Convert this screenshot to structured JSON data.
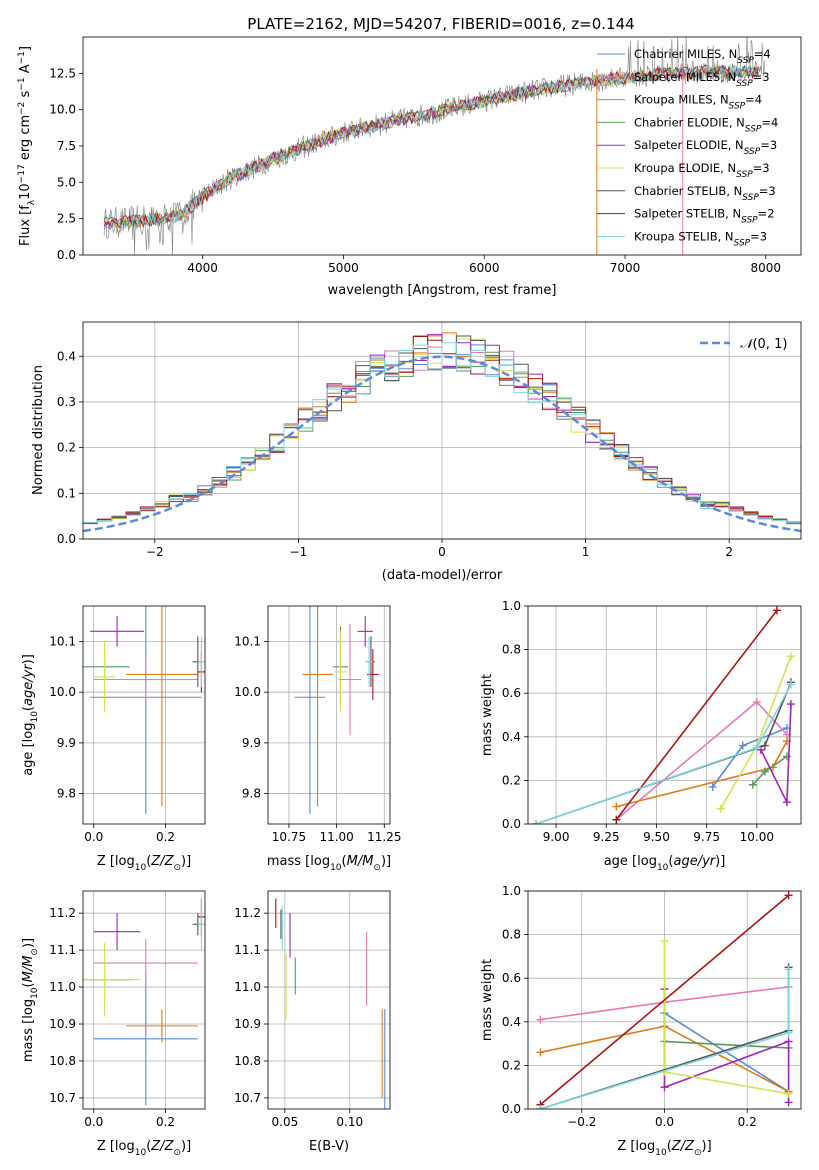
{
  "figure": {
    "title": "PLATE=2162, MJD=54207, FIBERID=0016, z=0.144"
  },
  "colors": {
    "Chabrier MILES": "#5b8ad6",
    "Salpeter MILES": "#e57ab8",
    "Kroupa MILES": "#de7a1f",
    "Chabrier ELODIE": "#5a9a58",
    "Salpeter ELODIE": "#9b28b5",
    "Kroupa ELODIE": "#cfe35a",
    "Chabrier STELIB": "#555555",
    "Salpeter STELIB": "#a51616",
    "Kroupa STELIB": "#7fd6e0",
    "data": "#808080",
    "gaussian": "#5b8ad6"
  },
  "chart_data": [
    {
      "id": "spectrum",
      "type": "line",
      "xlabel": "wavelength [Angstrom, rest frame]",
      "ylabel": "Flux [f_λ10^-17 erg cm^-2 s^-1 A^-1]",
      "xlim": [
        3150,
        8250
      ],
      "ylim": [
        0,
        15
      ],
      "xticks": [
        4000,
        5000,
        6000,
        7000,
        8000
      ],
      "yticks": [
        0.0,
        2.5,
        5.0,
        7.5,
        10.0,
        12.5
      ],
      "legend_position": "upper right",
      "series": [
        {
          "name": "Chabrier MILES",
          "nssp": "4"
        },
        {
          "name": "Salpeter MILES",
          "nssp": "3"
        },
        {
          "name": "Kroupa MILES",
          "nssp": "4"
        },
        {
          "name": "Chabrier ELODIE",
          "nssp": "4"
        },
        {
          "name": "Salpeter ELODIE",
          "nssp": "3"
        },
        {
          "name": "Kroupa ELODIE",
          "nssp": "3"
        },
        {
          "name": "Chabrier STELIB",
          "nssp": "3"
        },
        {
          "name": "Salpeter STELIB",
          "nssp": "2"
        },
        {
          "name": "Kroupa STELIB",
          "nssp": "3"
        }
      ],
      "continuum": {
        "x": [
          3300,
          3500,
          3700,
          3850,
          4000,
          4200,
          4500,
          4800,
          5000,
          5300,
          5600,
          6000,
          6400,
          6800,
          7200,
          7500,
          8000
        ],
        "y": [
          2.2,
          2.3,
          2.5,
          2.8,
          4.0,
          5.3,
          6.6,
          7.7,
          8.4,
          9.1,
          9.7,
          10.6,
          11.4,
          12.0,
          12.4,
          12.6,
          12.6
        ]
      }
    },
    {
      "id": "residuals",
      "type": "line",
      "xlabel": "(data-model)/error",
      "ylabel": "Normed distribution",
      "xlim": [
        -2.5,
        2.5
      ],
      "ylim": [
        0,
        0.475
      ],
      "xticks": [
        -2,
        -1,
        0,
        1,
        2
      ],
      "yticks": [
        0.0,
        0.1,
        0.2,
        0.3,
        0.4
      ],
      "grid": true,
      "legend_position": "upper right",
      "gaussian_label": "N(0,1)",
      "bins": {
        "start": -2.5,
        "width": 0.1,
        "count": 50
      }
    },
    {
      "id": "age_vs_Z",
      "type": "scatter",
      "xlabel": "Z [log10(Z/Z⊙)]",
      "ylabel": "age  [log10(age/yr)]",
      "xlim": [
        -0.03,
        0.31
      ],
      "ylim": [
        9.74,
        10.17
      ],
      "xticks": [
        0.0,
        0.2
      ],
      "yticks": [
        9.8,
        9.9,
        10.0,
        10.1
      ],
      "grid": true,
      "points": [
        {
          "s": "Chabrier MILES",
          "x": 0.145,
          "y": 9.99,
          "xerr": 0.155,
          "yerr": 0.23
        },
        {
          "s": "Salpeter MILES",
          "x": 0.145,
          "y": 10.025,
          "xerr": 0.145,
          "yerr": 0.05
        },
        {
          "s": "Kroupa MILES",
          "x": 0.19,
          "y": 10.035,
          "xerr": 0.1,
          "yerr": 0.26
        },
        {
          "s": "Chabrier ELODIE",
          "x": 0.03,
          "y": 10.05,
          "xerr": 0.07,
          "yerr": 0.03
        },
        {
          "s": "Salpeter ELODIE",
          "x": 0.065,
          "y": 10.12,
          "xerr": 0.075,
          "yerr": 0.03
        },
        {
          "s": "Kroupa ELODIE",
          "x": 0.03,
          "y": 10.03,
          "xerr": 0.03,
          "yerr": 0.07
        },
        {
          "s": "Chabrier STELIB",
          "x": 0.29,
          "y": 10.06,
          "xerr": 0.015,
          "yerr": 0.05
        },
        {
          "s": "Salpeter STELIB",
          "x": 0.3,
          "y": 10.04,
          "xerr": 0.01,
          "yerr": 0.04
        },
        {
          "s": "Kroupa STELIB",
          "x": 0.3,
          "y": 10.06,
          "xerr": 0.01,
          "yerr": 0.05
        }
      ]
    },
    {
      "id": "age_vs_mass",
      "type": "scatter",
      "xlabel": "mass [log10(M/M⊙)]",
      "xlim": [
        10.64,
        11.28
      ],
      "ylim": [
        9.74,
        10.17
      ],
      "xticks": [
        10.75,
        11.0,
        11.25
      ],
      "yticks": [
        9.8,
        9.9,
        10.0,
        10.1
      ],
      "grid": true,
      "points": [
        {
          "s": "Chabrier MILES",
          "x": 10.86,
          "y": 9.99,
          "xerr": 0.08,
          "yerr": 0.23
        },
        {
          "s": "Salpeter MILES",
          "x": 11.07,
          "y": 10.025,
          "xerr": 0.06,
          "yerr": 0.11
        },
        {
          "s": "Kroupa MILES",
          "x": 10.9,
          "y": 10.035,
          "xerr": 0.08,
          "yerr": 0.26
        },
        {
          "s": "Chabrier ELODIE",
          "x": 11.02,
          "y": 10.05,
          "xerr": 0.04,
          "yerr": 0.08
        },
        {
          "s": "Salpeter ELODIE",
          "x": 11.15,
          "y": 10.12,
          "xerr": 0.04,
          "yerr": 0.03
        },
        {
          "s": "Kroupa ELODIE",
          "x": 11.02,
          "y": 10.04,
          "xerr": 0.03,
          "yerr": 0.08
        },
        {
          "s": "Chabrier STELIB",
          "x": 11.18,
          "y": 10.06,
          "xerr": 0.02,
          "yerr": 0.05
        },
        {
          "s": "Salpeter STELIB",
          "x": 11.19,
          "y": 10.035,
          "xerr": 0.03,
          "yerr": 0.05
        },
        {
          "s": "Kroupa STELIB",
          "x": 11.17,
          "y": 10.06,
          "xerr": 0.02,
          "yerr": 0.05
        }
      ]
    },
    {
      "id": "weight_vs_age",
      "type": "line",
      "xlabel": "age  [log10(age/yr)]",
      "ylabel": "mass weight",
      "xlim": [
        8.86,
        10.22
      ],
      "ylim": [
        0,
        1.0
      ],
      "xticks": [
        9.0,
        9.25,
        9.5,
        9.75,
        10.0
      ],
      "yticks": [
        0.0,
        0.2,
        0.4,
        0.6,
        0.8,
        1.0
      ],
      "grid": true,
      "series": [
        {
          "name": "Chabrier MILES",
          "x": [
            9.78,
            9.93,
            10.15
          ],
          "y": [
            0.17,
            0.36,
            0.44
          ]
        },
        {
          "name": "Salpeter MILES",
          "x": [
            9.3,
            10.0,
            10.15
          ],
          "y": [
            0.02,
            0.56,
            0.41
          ]
        },
        {
          "name": "Kroupa MILES",
          "x": [
            9.3,
            10.08,
            10.15
          ],
          "y": [
            0.08,
            0.26,
            0.38
          ]
        },
        {
          "name": "Chabrier ELODIE",
          "x": [
            9.98,
            10.04,
            10.15
          ],
          "y": [
            0.18,
            0.24,
            0.31
          ]
        },
        {
          "name": "Salpeter ELODIE",
          "x": [
            10.02,
            10.15,
            10.17
          ],
          "y": [
            0.34,
            0.1,
            0.55
          ]
        },
        {
          "name": "Kroupa ELODIE",
          "x": [
            9.82,
            10.0,
            10.17
          ],
          "y": [
            0.07,
            0.36,
            0.77
          ]
        },
        {
          "name": "Chabrier STELIB",
          "x": [
            8.9,
            10.04,
            10.17
          ],
          "y": [
            0.0,
            0.36,
            0.65
          ]
        },
        {
          "name": "Salpeter STELIB",
          "x": [
            9.3,
            10.1
          ],
          "y": [
            0.02,
            0.98
          ]
        },
        {
          "name": "Kroupa STELIB",
          "x": [
            8.9,
            10.0,
            10.17
          ],
          "y": [
            0.0,
            0.35,
            0.64
          ]
        }
      ]
    },
    {
      "id": "mass_vs_Z",
      "type": "scatter",
      "xlabel": "Z [log10(Z/Z⊙)]",
      "ylabel": "mass [log10(M/M⊙)]",
      "xlim": [
        -0.03,
        0.31
      ],
      "ylim": [
        10.67,
        11.26
      ],
      "xticks": [
        0.0,
        0.2
      ],
      "yticks": [
        10.7,
        10.8,
        10.9,
        11.0,
        11.1,
        11.2
      ],
      "grid": true,
      "points": [
        {
          "s": "Chabrier MILES",
          "x": 0.145,
          "y": 10.86,
          "xerr": 0.145,
          "yerr": 0.18
        },
        {
          "s": "Salpeter MILES",
          "x": 0.145,
          "y": 11.065,
          "xerr": 0.145,
          "yerr": 0.065
        },
        {
          "s": "Kroupa MILES",
          "x": 0.19,
          "y": 10.895,
          "xerr": 0.1,
          "yerr": 0.045
        },
        {
          "s": "Chabrier ELODIE",
          "x": 0.03,
          "y": 11.02,
          "xerr": 0.075,
          "yerr": 0.06
        },
        {
          "s": "Salpeter ELODIE",
          "x": 0.065,
          "y": 11.15,
          "xerr": 0.065,
          "yerr": 0.05
        },
        {
          "s": "Kroupa ELODIE",
          "x": 0.03,
          "y": 11.02,
          "xerr": 0.1,
          "yerr": 0.1
        },
        {
          "s": "Chabrier STELIB",
          "x": 0.29,
          "y": 11.17,
          "xerr": 0.015,
          "yerr": 0.03
        },
        {
          "s": "Salpeter STELIB",
          "x": 0.3,
          "y": 11.19,
          "xerr": 0.01,
          "yerr": 0.05
        },
        {
          "s": "Kroupa STELIB",
          "x": 0.3,
          "y": 11.17,
          "xerr": 0.01,
          "yerr": 0.07
        }
      ]
    },
    {
      "id": "mass_vs_EBV",
      "type": "scatter",
      "xlabel": "E(B-V)",
      "xlim": [
        0.037,
        0.131
      ],
      "ylim": [
        10.67,
        11.26
      ],
      "xticks": [
        0.05,
        0.1
      ],
      "yticks": [
        10.7,
        10.8,
        10.9,
        11.0,
        11.1,
        11.2
      ],
      "grid": true,
      "points": [
        {
          "s": "Chabrier MILES",
          "x": 0.127,
          "y": 10.8,
          "yerr": 0.14
        },
        {
          "s": "Salpeter MILES",
          "x": 0.113,
          "y": 11.05,
          "yerr": 0.1
        },
        {
          "s": "Kroupa MILES",
          "x": 0.125,
          "y": 10.82,
          "yerr": 0.12
        },
        {
          "s": "Chabrier ELODIE",
          "x": 0.058,
          "y": 11.03,
          "yerr": 0.05
        },
        {
          "s": "Salpeter ELODIE",
          "x": 0.054,
          "y": 11.14,
          "yerr": 0.06
        },
        {
          "s": "Kroupa ELODIE",
          "x": 0.051,
          "y": 11.0,
          "yerr": 0.09
        },
        {
          "s": "Chabrier STELIB",
          "x": 0.047,
          "y": 11.17,
          "yerr": 0.04
        },
        {
          "s": "Salpeter STELIB",
          "x": 0.043,
          "y": 11.2,
          "yerr": 0.04
        },
        {
          "s": "Kroupa STELIB",
          "x": 0.048,
          "y": 11.16,
          "yerr": 0.06
        }
      ]
    },
    {
      "id": "weight_vs_Z",
      "type": "line",
      "xlabel": "Z [log10(Z/Z⊙)]",
      "ylabel": "mass weight",
      "xlim": [
        -0.33,
        0.33
      ],
      "ylim": [
        0,
        1.0
      ],
      "xticks": [
        -0.2,
        0.0,
        0.2
      ],
      "yticks": [
        0.0,
        0.2,
        0.4,
        0.6,
        0.8,
        1.0
      ],
      "grid": true,
      "series": [
        {
          "name": "Chabrier MILES",
          "x": [
            0.0,
            0.3
          ],
          "y": [
            0.44,
            0.08
          ]
        },
        {
          "name": "Salpeter MILES",
          "x": [
            -0.3,
            0.0,
            0.3
          ],
          "y": [
            0.41,
            0.49,
            0.56
          ]
        },
        {
          "name": "Kroupa MILES",
          "x": [
            -0.3,
            0.0,
            0.3
          ],
          "y": [
            0.26,
            0.38,
            0.08
          ]
        },
        {
          "name": "Chabrier ELODIE",
          "x": [
            0.0,
            0.3
          ],
          "y": [
            0.31,
            0.28
          ]
        },
        {
          "name": "Salpeter ELODIE",
          "x": [
            0.0,
            0.0,
            0.3,
            0.3
          ],
          "y": [
            0.55,
            0.1,
            0.31,
            0.03
          ]
        },
        {
          "name": "Kroupa ELODIE",
          "x": [
            0.0,
            0.0,
            0.3
          ],
          "y": [
            0.77,
            0.17,
            0.07
          ]
        },
        {
          "name": "Chabrier STELIB",
          "x": [
            -0.3,
            0.3,
            0.3
          ],
          "y": [
            0.0,
            0.36,
            0.65
          ]
        },
        {
          "name": "Salpeter STELIB",
          "x": [
            -0.3,
            0.3
          ],
          "y": [
            0.02,
            0.98
          ]
        },
        {
          "name": "Kroupa STELIB",
          "x": [
            -0.3,
            0.3,
            0.3
          ],
          "y": [
            0.0,
            0.35,
            0.64
          ]
        }
      ]
    }
  ]
}
